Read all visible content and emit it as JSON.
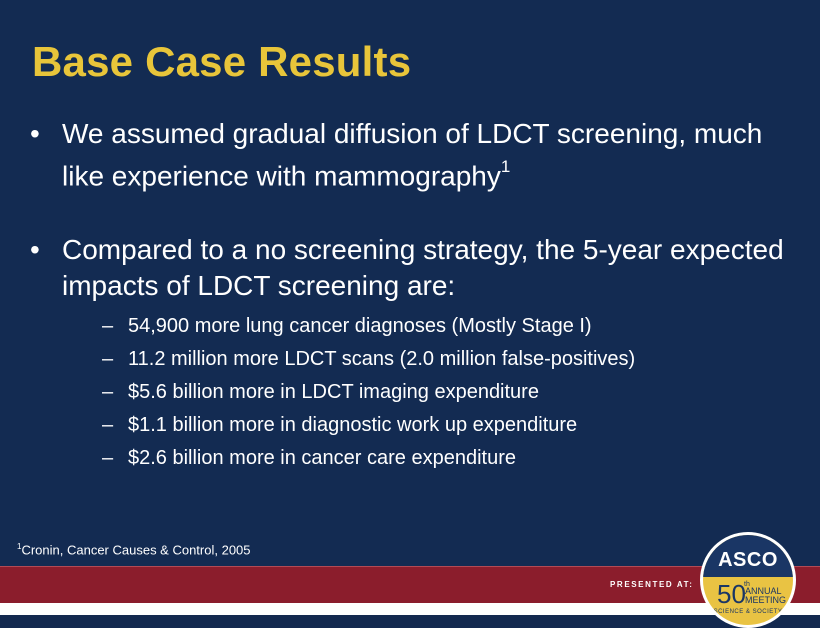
{
  "slide": {
    "title": "Base Case Results",
    "bullets": [
      {
        "marker": "•",
        "text": "We assumed gradual diffusion of LDCT screening, much like experience with mammography",
        "superscript": "1"
      },
      {
        "marker": "•",
        "text": "Compared to a no screening strategy, the 5-year expected impacts of LDCT screening are:"
      }
    ],
    "sub_bullets": [
      {
        "marker": "–",
        "text": "54,900 more lung cancer diagnoses (Mostly Stage I)"
      },
      {
        "marker": "–",
        "text": "11.2 million more LDCT scans (2.0 million false-positives)"
      },
      {
        "marker": "–",
        "text": "$5.6 billion more in LDCT imaging expenditure"
      },
      {
        "marker": "–",
        "text": "$1.1 billion more in diagnostic work up expenditure"
      },
      {
        "marker": "–",
        "text": "$2.6 billion more in cancer care expenditure"
      }
    ],
    "footnote": {
      "marker": "1",
      "text": "Cronin, Cancer Causes & Control, 2005"
    }
  },
  "footer": {
    "presented_label": "PRESENTED AT:",
    "badge": {
      "name": "ASCO",
      "number": "50",
      "ordinal": "th",
      "line1": "ANNUAL",
      "line2": "MEETING",
      "tagline": "SCIENCE & SOCIETY"
    }
  },
  "colors": {
    "background": "#132b52",
    "title": "#e8c53a",
    "footer_bar": "#8b1d2c",
    "badge_gold": "#e9c343"
  }
}
